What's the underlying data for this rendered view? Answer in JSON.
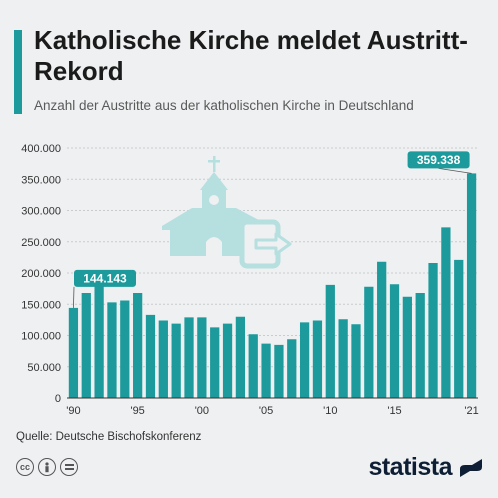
{
  "header": {
    "title": "Katholische Kirche meldet Austritt-Rekord",
    "subtitle": "Anzahl der Austritte aus der katholischen Kirche in Deutschland"
  },
  "footer": {
    "source": "Quelle: Deutsche Bischofskonferenz",
    "brand": "statista",
    "license_icons": [
      "cc-icon",
      "person-icon",
      "equals-icon"
    ]
  },
  "colors": {
    "bar": "#1c9a9c",
    "accent": "#1c9a9c",
    "illustration": "#b6dfdf",
    "grid": "#c9cccd"
  },
  "chart_data": {
    "type": "bar",
    "title": "Anzahl der Austritte aus der katholischen Kirche in Deutschland",
    "xlabel": "",
    "ylabel": "",
    "categories": [
      "1990",
      "1991",
      "1992",
      "1993",
      "1994",
      "1995",
      "1996",
      "1997",
      "1998",
      "1999",
      "2000",
      "2001",
      "2002",
      "2003",
      "2004",
      "2005",
      "2006",
      "2007",
      "2008",
      "2009",
      "2010",
      "2011",
      "2012",
      "2013",
      "2014",
      "2015",
      "2016",
      "2017",
      "2018",
      "2019",
      "2020",
      "2021"
    ],
    "values": [
      144143,
      168000,
      193000,
      153000,
      156000,
      168000,
      133000,
      124000,
      119000,
      129000,
      129000,
      113000,
      119000,
      130000,
      102000,
      87000,
      85000,
      94000,
      121000,
      124000,
      181000,
      126000,
      118000,
      178000,
      218000,
      182000,
      162000,
      168000,
      216000,
      273000,
      221000,
      359338
    ],
    "ylim": [
      0,
      400000
    ],
    "yticks": [
      0,
      50000,
      100000,
      150000,
      200000,
      250000,
      300000,
      350000,
      400000
    ],
    "ytick_labels": [
      "0",
      "50.000",
      "100.000",
      "150.000",
      "200.000",
      "250.000",
      "300.000",
      "350.000",
      "400.000"
    ],
    "xtick_labels": [
      {
        "index": 0,
        "label": "'90"
      },
      {
        "index": 5,
        "label": "'95"
      },
      {
        "index": 10,
        "label": "'00"
      },
      {
        "index": 15,
        "label": "'05"
      },
      {
        "index": 20,
        "label": "'10"
      },
      {
        "index": 25,
        "label": "'15"
      },
      {
        "index": 31,
        "label": "'21"
      }
    ],
    "annotations": [
      {
        "index": 0,
        "label": "144.143"
      },
      {
        "index": 31,
        "label": "359.338"
      }
    ],
    "grid": true
  }
}
